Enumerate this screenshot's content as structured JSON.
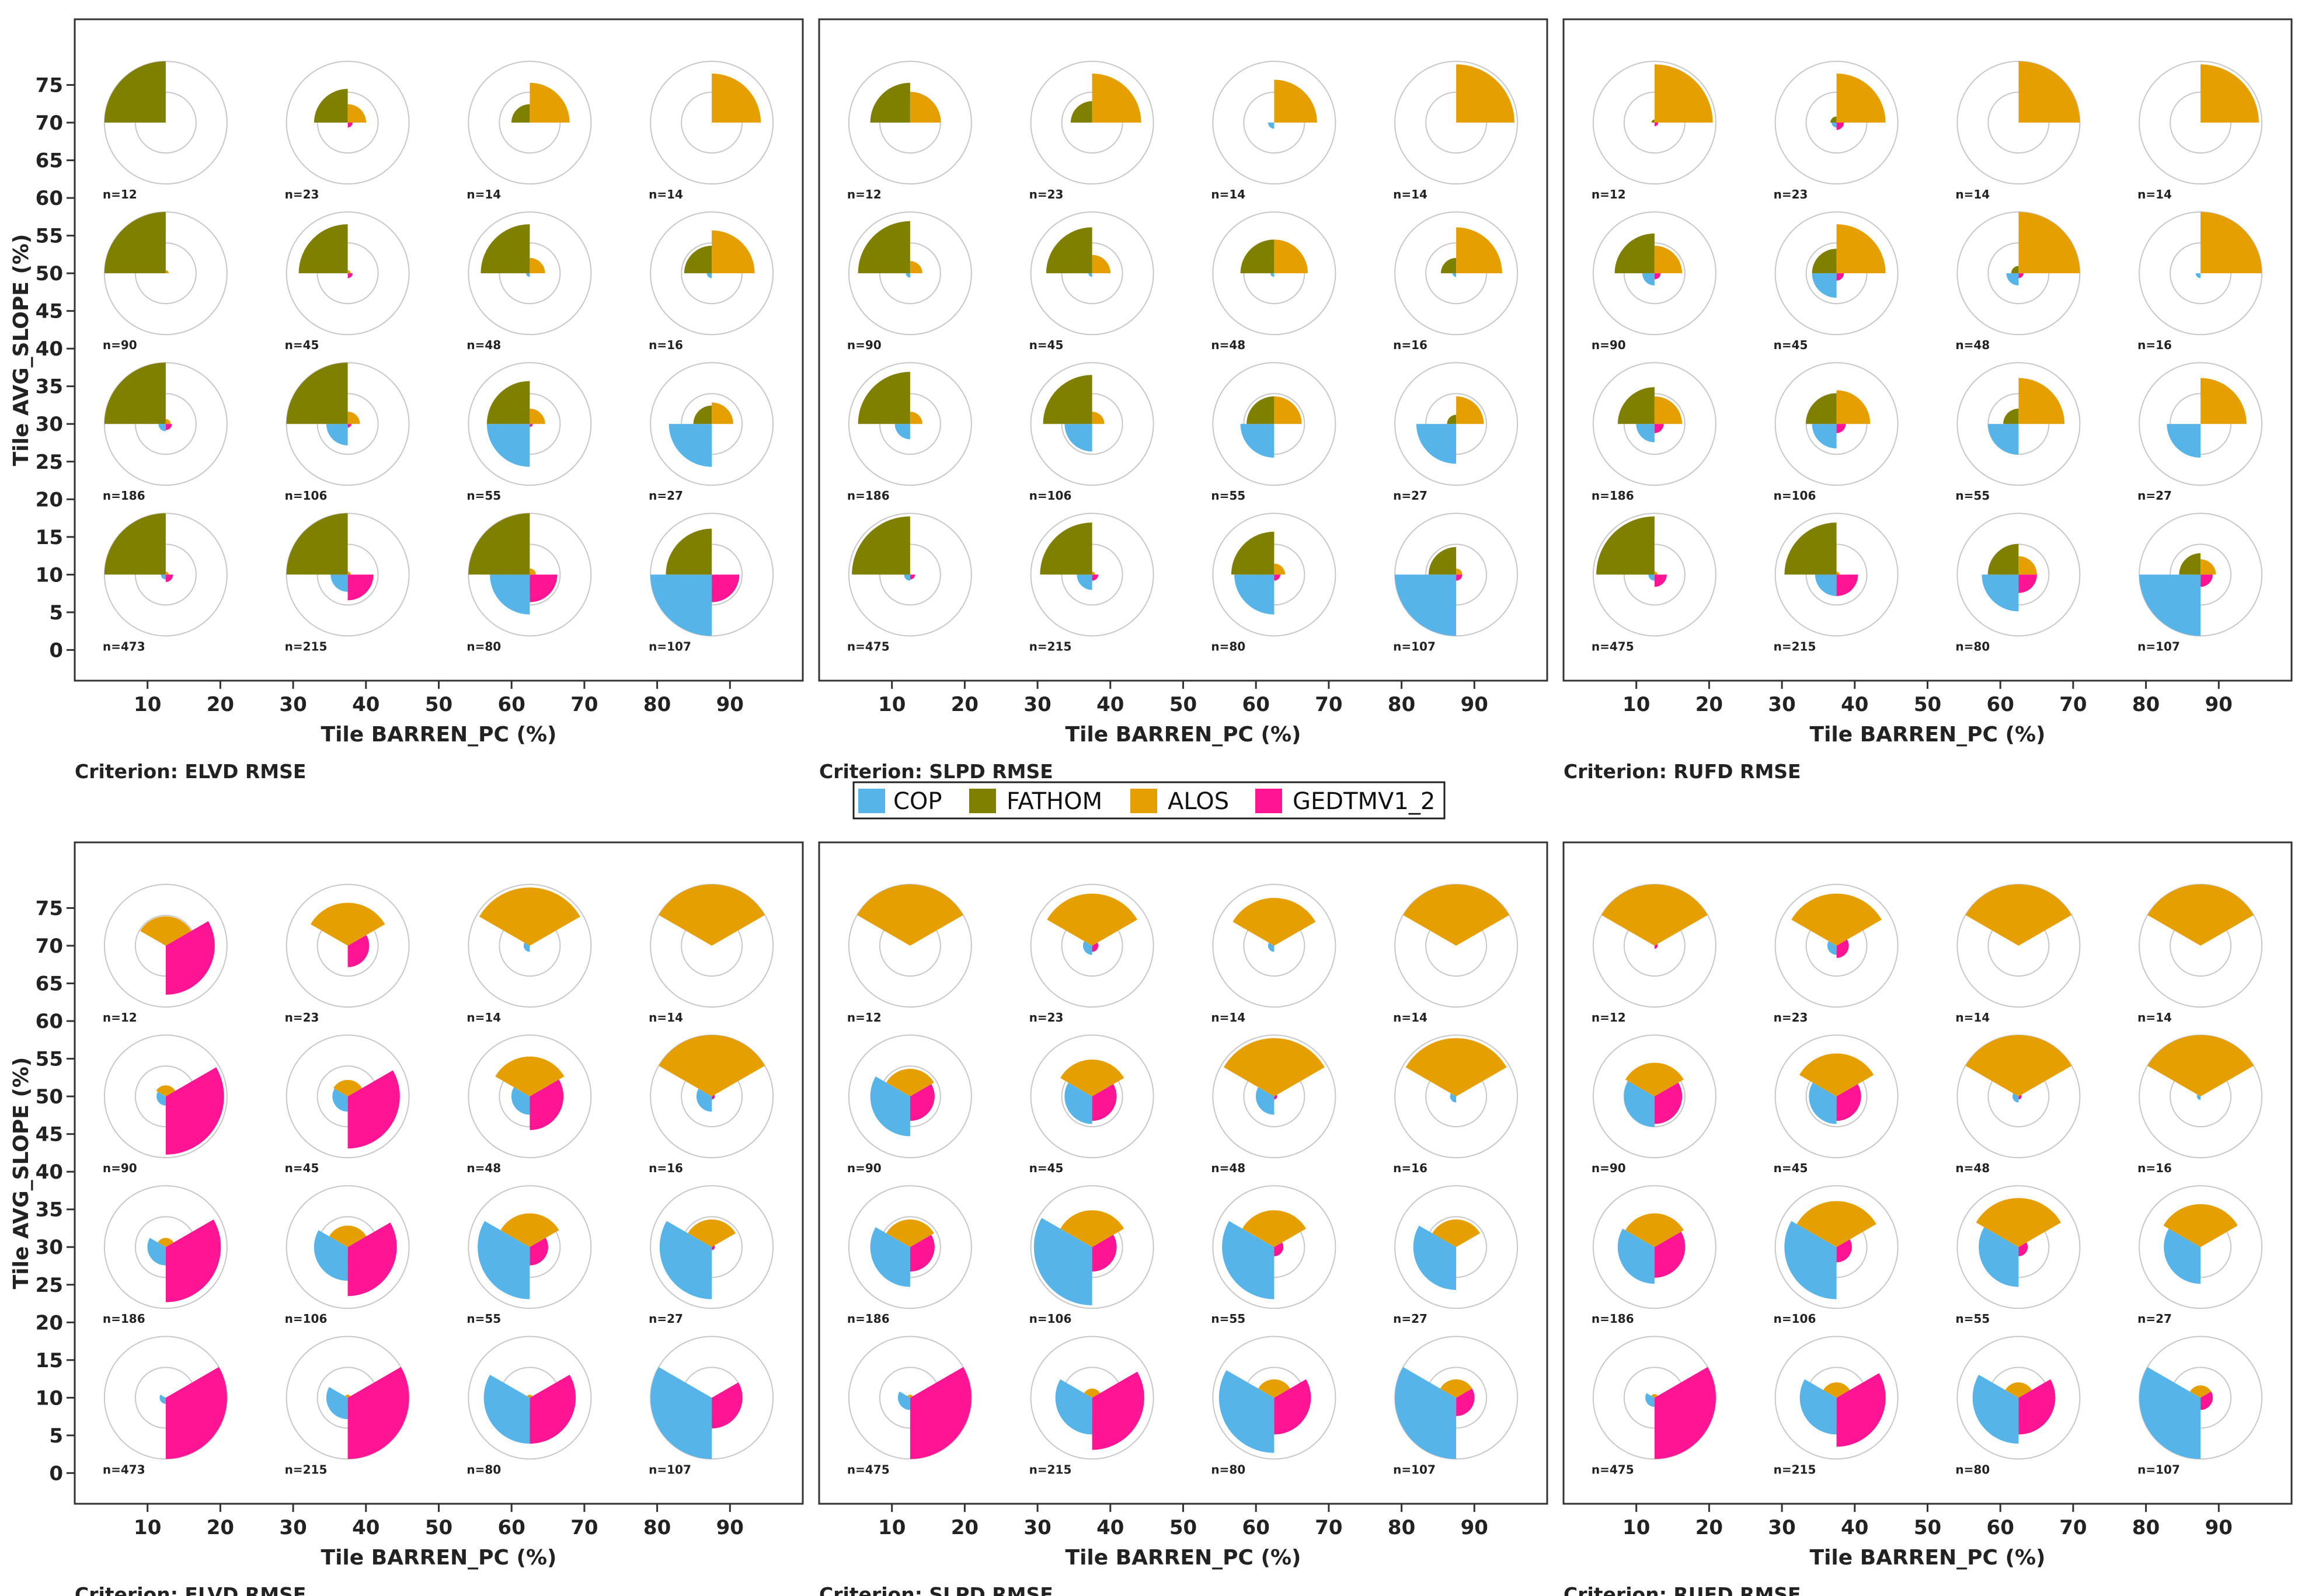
{
  "legend": {
    "items": [
      {
        "name": "COP",
        "color": "#56B4E9"
      },
      {
        "name": "FATHOM",
        "color": "#808000"
      },
      {
        "name": "ALOS",
        "color": "#E69F00"
      },
      {
        "name": "GEDTMV1_2",
        "color": "#FF1493"
      }
    ]
  },
  "chart_data": {
    "type": "polar-glyph-grid",
    "x_label": "Tile BARREN_PC (%)",
    "y_label": "Tile AVG_SLOPE (%)",
    "x_ticks": [
      10,
      20,
      30,
      40,
      50,
      60,
      70,
      80,
      90
    ],
    "y_ticks": [
      0,
      5,
      10,
      15,
      20,
      25,
      30,
      35,
      40,
      45,
      50,
      55,
      60,
      65,
      70,
      75
    ],
    "xlim": [
      0,
      100
    ],
    "ylim": [
      -4,
      80
    ],
    "glyph_x_centers": [
      12.5,
      37.5,
      62.5,
      87.5
    ],
    "glyph_y_centers": [
      70,
      50,
      30,
      10
    ],
    "series_order": [
      "COP",
      "FATHOM",
      "ALOS",
      "GEDTMV1_2"
    ],
    "rows": [
      {
        "criterion": "Criterion: ELVD RMSE",
        "orientation": "quadrant",
        "panels": [
          {
            "n": [
              [
                "n=12",
                "n=23",
                "n=14",
                "n=14"
              ],
              [
                "n=90",
                "n=45",
                "n=48",
                "n=16"
              ],
              [
                "n=186",
                "n=106",
                "n=55",
                "n=27"
              ],
              [
                "n=473",
                "n=215",
                "n=80",
                "n=107"
              ]
            ],
            "cells": [
              [
                [
                  0.0,
                  1.0,
                  0.0,
                  0.0
                ],
                [
                  0.0,
                  0.55,
                  0.3,
                  0.08
                ],
                [
                  0.0,
                  0.3,
                  0.65,
                  0.0
                ],
                [
                  0.0,
                  0.0,
                  0.8,
                  0.0
                ]
              ],
              [
                [
                  0.0,
                  1.0,
                  0.05,
                  0.0
                ],
                [
                  0.0,
                  0.8,
                  0.05,
                  0.08
                ],
                [
                  0.06,
                  0.8,
                  0.25,
                  0.0
                ],
                [
                  0.08,
                  0.45,
                  0.7,
                  0.0
                ]
              ],
              [
                [
                  0.12,
                  1.0,
                  0.08,
                  0.1
                ],
                [
                  0.35,
                  1.0,
                  0.2,
                  0.06
                ],
                [
                  0.7,
                  0.7,
                  0.25,
                  0.05
                ],
                [
                  0.7,
                  0.3,
                  0.35,
                  0.0
                ]
              ],
              [
                [
                  0.08,
                  1.0,
                  0.05,
                  0.12
                ],
                [
                  0.28,
                  1.0,
                  0.05,
                  0.42
                ],
                [
                  0.65,
                  1.0,
                  0.1,
                  0.45
                ],
                [
                  1.0,
                  0.75,
                  0.0,
                  0.45
                ]
              ]
            ]
          },
          {
            "n": [
              [
                "n=12",
                "n=23",
                "n=14",
                "n=14"
              ],
              [
                "n=90",
                "n=45",
                "n=48",
                "n=16"
              ],
              [
                "n=186",
                "n=106",
                "n=55",
                "n=27"
              ],
              [
                "n=475",
                "n=215",
                "n=80",
                "n=107"
              ]
            ],
            "cells": [
              [
                [
                  0.0,
                  0.65,
                  0.5,
                  0.0
                ],
                [
                  0.0,
                  0.35,
                  0.8,
                  0.0
                ],
                [
                  0.1,
                  0.0,
                  0.7,
                  0.0
                ],
                [
                  0.0,
                  0.0,
                  0.95,
                  0.0
                ]
              ],
              [
                [
                  0.07,
                  0.85,
                  0.2,
                  0.0
                ],
                [
                  0.06,
                  0.75,
                  0.3,
                  0.0
                ],
                [
                  0.06,
                  0.55,
                  0.55,
                  0.0
                ],
                [
                  0.06,
                  0.25,
                  0.75,
                  0.0
                ]
              ],
              [
                [
                  0.25,
                  0.85,
                  0.2,
                  0.0
                ],
                [
                  0.45,
                  0.8,
                  0.2,
                  0.0
                ],
                [
                  0.55,
                  0.45,
                  0.45,
                  0.0
                ],
                [
                  0.65,
                  0.15,
                  0.45,
                  0.0
                ]
              ],
              [
                [
                  0.1,
                  0.95,
                  0.0,
                  0.08
                ],
                [
                  0.25,
                  0.85,
                  0.05,
                  0.1
                ],
                [
                  0.65,
                  0.7,
                  0.18,
                  0.1
                ],
                [
                  1.0,
                  0.45,
                  0.1,
                  0.1
                ]
              ]
            ]
          },
          {
            "n": [
              [
                "n=12",
                "n=23",
                "n=14",
                "n=14"
              ],
              [
                "n=90",
                "n=45",
                "n=48",
                "n=16"
              ],
              [
                "n=186",
                "n=106",
                "n=55",
                "n=27"
              ],
              [
                "n=475",
                "n=215",
                "n=80",
                "n=107"
              ]
            ],
            "cells": [
              [
                [
                  0.0,
                  0.05,
                  0.95,
                  0.06
                ],
                [
                  0.08,
                  0.1,
                  0.8,
                  0.12
                ],
                [
                  0.0,
                  0.0,
                  1.0,
                  0.0
                ],
                [
                  0.0,
                  0.0,
                  0.95,
                  0.0
                ]
              ],
              [
                [
                  0.2,
                  0.65,
                  0.45,
                  0.1
                ],
                [
                  0.4,
                  0.4,
                  0.8,
                  0.12
                ],
                [
                  0.2,
                  0.12,
                  1.0,
                  0.08
                ],
                [
                  0.08,
                  0.0,
                  1.0,
                  0.0
                ]
              ],
              [
                [
                  0.3,
                  0.6,
                  0.45,
                  0.15
                ],
                [
                  0.4,
                  0.5,
                  0.55,
                  0.15
                ],
                [
                  0.5,
                  0.25,
                  0.75,
                  0.0
                ],
                [
                  0.55,
                  0.0,
                  0.75,
                  0.0
                ]
              ],
              [
                [
                  0.1,
                  0.95,
                  0.05,
                  0.2
                ],
                [
                  0.35,
                  0.85,
                  0.05,
                  0.35
                ],
                [
                  0.6,
                  0.5,
                  0.3,
                  0.3
                ],
                [
                  1.0,
                  0.35,
                  0.25,
                  0.2
                ]
              ]
            ]
          }
        ]
      },
      {
        "criterion": "Criterion: ELVD RMSE",
        "orientation": "trisector",
        "panels": [
          {
            "n": [
              [
                "n=12",
                "n=23",
                "n=14",
                "n=14"
              ],
              [
                "n=90",
                "n=45",
                "n=48",
                "n=16"
              ],
              [
                "n=186",
                "n=106",
                "n=55",
                "n=27"
              ],
              [
                "n=473",
                "n=215",
                "n=80",
                "n=107"
              ]
            ],
            "cells": [
              [
                [
                  0.0,
                  0.0,
                  0.48,
                  0.8
                ],
                [
                  0.0,
                  0.0,
                  0.7,
                  0.35
                ],
                [
                  0.1,
                  0.0,
                  0.95,
                  0.0
                ],
                [
                  0.0,
                  0.0,
                  1.0,
                  0.0
                ]
              ],
              [
                [
                  0.15,
                  0.0,
                  0.18,
                  0.95
                ],
                [
                  0.25,
                  0.0,
                  0.27,
                  0.85
                ],
                [
                  0.3,
                  0.0,
                  0.65,
                  0.55
                ],
                [
                  0.25,
                  0.0,
                  1.0,
                  0.05
                ]
              ],
              [
                [
                  0.3,
                  0.0,
                  0.15,
                  0.9
                ],
                [
                  0.55,
                  0.0,
                  0.35,
                  0.8
                ],
                [
                  0.85,
                  0.0,
                  0.55,
                  0.3
                ],
                [
                  0.85,
                  0.0,
                  0.45,
                  0.05
                ]
              ],
              [
                [
                  0.1,
                  0.0,
                  0.0,
                  1.0
                ],
                [
                  0.35,
                  0.0,
                  0.05,
                  1.0
                ],
                [
                  0.75,
                  0.0,
                  0.05,
                  0.75
                ],
                [
                  1.0,
                  0.0,
                  0.0,
                  0.5
                ]
              ]
            ]
          },
          {
            "n": [
              [
                "n=12",
                "n=23",
                "n=14",
                "n=14"
              ],
              [
                "n=90",
                "n=45",
                "n=48",
                "n=16"
              ],
              [
                "n=186",
                "n=106",
                "n=55",
                "n=27"
              ],
              [
                "n=475",
                "n=215",
                "n=80",
                "n=107"
              ]
            ],
            "cells": [
              [
                [
                  0.0,
                  0.0,
                  1.0,
                  0.0
                ],
                [
                  0.15,
                  0.0,
                  0.85,
                  0.1
                ],
                [
                  0.1,
                  0.0,
                  0.78,
                  0.0
                ],
                [
                  0.0,
                  0.0,
                  1.0,
                  0.0
                ]
              ],
              [
                [
                  0.65,
                  0.0,
                  0.45,
                  0.4
                ],
                [
                  0.45,
                  0.0,
                  0.6,
                  0.4
                ],
                [
                  0.3,
                  0.0,
                  0.95,
                  0.05
                ],
                [
                  0.1,
                  0.0,
                  0.95,
                  0.0
                ]
              ],
              [
                [
                  0.65,
                  0.0,
                  0.45,
                  0.4
                ],
                [
                  0.95,
                  0.0,
                  0.6,
                  0.4
                ],
                [
                  0.85,
                  0.0,
                  0.6,
                  0.15
                ],
                [
                  0.7,
                  0.0,
                  0.45,
                  0.0
                ]
              ],
              [
                [
                  0.2,
                  0.0,
                  0.05,
                  1.0
                ],
                [
                  0.6,
                  0.0,
                  0.15,
                  0.85
                ],
                [
                  0.9,
                  0.0,
                  0.3,
                  0.6
                ],
                [
                  1.0,
                  0.0,
                  0.3,
                  0.3
                ]
              ]
            ]
          },
          {
            "n": [
              [
                "n=12",
                "n=23",
                "n=14",
                "n=14"
              ],
              [
                "n=90",
                "n=45",
                "n=48",
                "n=16"
              ],
              [
                "n=186",
                "n=106",
                "n=55",
                "n=27"
              ],
              [
                "n=475",
                "n=215",
                "n=80",
                "n=107"
              ]
            ],
            "cells": [
              [
                [
                  0.0,
                  0.0,
                  1.0,
                  0.05
                ],
                [
                  0.15,
                  0.0,
                  0.85,
                  0.2
                ],
                [
                  0.0,
                  0.0,
                  1.0,
                  0.0
                ],
                [
                  0.0,
                  0.0,
                  1.0,
                  0.0
                ]
              ],
              [
                [
                  0.5,
                  0.0,
                  0.55,
                  0.45
                ],
                [
                  0.45,
                  0.0,
                  0.7,
                  0.4
                ],
                [
                  0.1,
                  0.0,
                  1.0,
                  0.05
                ],
                [
                  0.06,
                  0.0,
                  1.0,
                  0.0
                ]
              ],
              [
                [
                  0.6,
                  0.0,
                  0.55,
                  0.5
                ],
                [
                  0.85,
                  0.0,
                  0.75,
                  0.25
                ],
                [
                  0.65,
                  0.0,
                  0.8,
                  0.15
                ],
                [
                  0.6,
                  0.0,
                  0.7,
                  0.0
                ]
              ],
              [
                [
                  0.15,
                  0.0,
                  0.06,
                  1.0
                ],
                [
                  0.6,
                  0.0,
                  0.25,
                  0.8
                ],
                [
                  0.75,
                  0.0,
                  0.25,
                  0.6
                ],
                [
                  1.0,
                  0.0,
                  0.2,
                  0.2
                ]
              ]
            ]
          }
        ]
      }
    ],
    "row_criteria": [
      [
        "Criterion: ELVD RMSE",
        "Criterion: SLPD RMSE",
        "Criterion: RUFD RMSE"
      ],
      [
        "Criterion: ELVD RMSE",
        "Criterion: SLPD RMSE",
        "Criterion: RUFD RMSE"
      ]
    ]
  }
}
